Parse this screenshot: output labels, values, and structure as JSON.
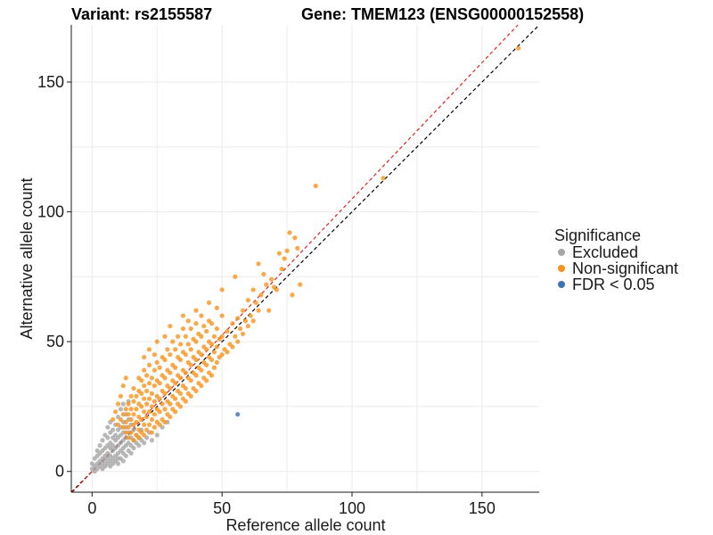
{
  "chart_data": {
    "type": "scatter",
    "title_variant": "Variant: rs2155587",
    "title_gene": "Gene: TMEM123 (ENSG00000152558)",
    "xlabel": "Reference allele count",
    "ylabel": "Alternative allele count",
    "xlim": [
      -8,
      172
    ],
    "ylim": [
      -8,
      172
    ],
    "xticks": [
      0,
      50,
      100,
      150
    ],
    "yticks": [
      0,
      50,
      100,
      150
    ],
    "grid": true,
    "legend_position": "right",
    "legend": {
      "title": "Significance",
      "entries": [
        {
          "label": "Excluded",
          "color": "#a6a6a6"
        },
        {
          "label": "Non-significant",
          "color": "#f7941d"
        },
        {
          "label": "FDR < 0.05",
          "color": "#3d72b4"
        }
      ]
    },
    "reference_lines": [
      {
        "name": "identity",
        "color": "#000000",
        "slope": 1,
        "intercept": 0
      },
      {
        "name": "fit",
        "color": "#e8231d",
        "slope": 1.05,
        "intercept": 0
      }
    ],
    "series": [
      {
        "name": "Excluded",
        "color": "#a6a6a6",
        "points": [
          [
            0,
            1
          ],
          [
            0,
            3
          ],
          [
            1,
            0
          ],
          [
            1,
            2
          ],
          [
            1,
            5
          ],
          [
            2,
            1
          ],
          [
            2,
            3
          ],
          [
            2,
            6
          ],
          [
            2,
            8
          ],
          [
            3,
            2
          ],
          [
            3,
            4
          ],
          [
            3,
            7
          ],
          [
            3,
            10
          ],
          [
            4,
            1
          ],
          [
            4,
            3
          ],
          [
            4,
            5
          ],
          [
            4,
            8
          ],
          [
            4,
            12
          ],
          [
            5,
            2
          ],
          [
            5,
            4
          ],
          [
            5,
            6
          ],
          [
            5,
            9
          ],
          [
            5,
            14
          ],
          [
            6,
            3
          ],
          [
            6,
            5
          ],
          [
            6,
            7
          ],
          [
            6,
            10
          ],
          [
            6,
            13
          ],
          [
            6,
            17
          ],
          [
            7,
            2
          ],
          [
            7,
            4
          ],
          [
            7,
            6
          ],
          [
            7,
            9
          ],
          [
            7,
            11
          ],
          [
            7,
            15
          ],
          [
            7,
            19
          ],
          [
            8,
            3
          ],
          [
            8,
            5
          ],
          [
            8,
            8
          ],
          [
            8,
            10
          ],
          [
            8,
            13
          ],
          [
            8,
            16
          ],
          [
            9,
            4
          ],
          [
            9,
            6
          ],
          [
            9,
            9
          ],
          [
            9,
            12
          ],
          [
            9,
            14
          ],
          [
            9,
            18
          ],
          [
            10,
            3
          ],
          [
            10,
            5
          ],
          [
            10,
            7
          ],
          [
            10,
            10
          ],
          [
            10,
            13
          ],
          [
            10,
            16
          ],
          [
            10,
            21
          ],
          [
            11,
            5
          ],
          [
            11,
            8
          ],
          [
            11,
            11
          ],
          [
            11,
            14
          ],
          [
            11,
            17
          ],
          [
            11,
            24
          ],
          [
            12,
            4
          ],
          [
            12,
            7
          ],
          [
            12,
            9
          ],
          [
            12,
            12
          ],
          [
            12,
            15
          ],
          [
            12,
            19
          ],
          [
            12,
            26
          ],
          [
            13,
            6
          ],
          [
            13,
            10
          ],
          [
            13,
            13
          ],
          [
            13,
            17
          ],
          [
            13,
            22
          ],
          [
            14,
            8
          ],
          [
            14,
            11
          ],
          [
            14,
            15
          ],
          [
            14,
            20
          ],
          [
            14,
            27
          ],
          [
            15,
            7
          ],
          [
            15,
            10
          ],
          [
            15,
            13
          ],
          [
            15,
            18
          ],
          [
            16,
            9
          ],
          [
            16,
            12
          ],
          [
            16,
            16
          ],
          [
            17,
            11
          ],
          [
            17,
            14
          ],
          [
            18,
            10
          ],
          [
            18,
            13
          ],
          [
            19,
            12
          ],
          [
            19,
            16
          ],
          [
            20,
            11
          ],
          [
            21,
            13
          ],
          [
            22,
            15
          ],
          [
            23,
            12
          ],
          [
            25,
            14
          ],
          [
            27,
            17
          ],
          [
            29,
            19
          ]
        ]
      },
      {
        "name": "Non-significant",
        "color": "#f7941d",
        "points": [
          [
            10,
            18
          ],
          [
            11,
            20
          ],
          [
            12,
            17
          ],
          [
            12,
            22
          ],
          [
            13,
            15
          ],
          [
            13,
            19
          ],
          [
            13,
            24
          ],
          [
            14,
            13
          ],
          [
            14,
            17
          ],
          [
            14,
            22
          ],
          [
            14,
            26
          ],
          [
            15,
            15
          ],
          [
            15,
            20
          ],
          [
            15,
            24
          ],
          [
            15,
            29
          ],
          [
            16,
            12
          ],
          [
            16,
            18
          ],
          [
            16,
            22
          ],
          [
            16,
            27
          ],
          [
            16,
            32
          ],
          [
            17,
            14
          ],
          [
            17,
            19
          ],
          [
            17,
            24
          ],
          [
            17,
            29
          ],
          [
            18,
            13
          ],
          [
            18,
            16
          ],
          [
            18,
            21
          ],
          [
            18,
            26
          ],
          [
            18,
            31
          ],
          [
            18,
            36
          ],
          [
            19,
            15
          ],
          [
            19,
            20
          ],
          [
            19,
            25
          ],
          [
            19,
            30
          ],
          [
            19,
            35
          ],
          [
            20,
            14
          ],
          [
            20,
            18
          ],
          [
            20,
            23
          ],
          [
            20,
            28
          ],
          [
            20,
            33
          ],
          [
            20,
            39
          ],
          [
            21,
            16
          ],
          [
            21,
            21
          ],
          [
            21,
            26
          ],
          [
            21,
            31
          ],
          [
            21,
            37
          ],
          [
            22,
            18
          ],
          [
            22,
            23
          ],
          [
            22,
            28
          ],
          [
            22,
            34
          ],
          [
            22,
            41
          ],
          [
            23,
            15
          ],
          [
            23,
            20
          ],
          [
            23,
            25
          ],
          [
            23,
            30
          ],
          [
            23,
            36
          ],
          [
            24,
            17
          ],
          [
            24,
            22
          ],
          [
            24,
            27
          ],
          [
            24,
            33
          ],
          [
            24,
            39
          ],
          [
            24,
            45
          ],
          [
            25,
            19
          ],
          [
            25,
            24
          ],
          [
            25,
            29
          ],
          [
            25,
            35
          ],
          [
            25,
            42
          ],
          [
            26,
            18
          ],
          [
            26,
            23
          ],
          [
            26,
            28
          ],
          [
            26,
            34
          ],
          [
            26,
            40
          ],
          [
            27,
            20
          ],
          [
            27,
            26
          ],
          [
            27,
            31
          ],
          [
            27,
            37
          ],
          [
            27,
            44
          ],
          [
            28,
            19
          ],
          [
            28,
            24
          ],
          [
            28,
            30
          ],
          [
            28,
            36
          ],
          [
            28,
            43
          ],
          [
            29,
            22
          ],
          [
            29,
            27
          ],
          [
            29,
            33
          ],
          [
            29,
            39
          ],
          [
            29,
            47
          ],
          [
            30,
            21
          ],
          [
            30,
            26
          ],
          [
            30,
            32
          ],
          [
            30,
            38
          ],
          [
            30,
            45
          ],
          [
            31,
            24
          ],
          [
            31,
            29
          ],
          [
            31,
            35
          ],
          [
            31,
            41
          ],
          [
            31,
            50
          ],
          [
            32,
            23
          ],
          [
            32,
            28
          ],
          [
            32,
            34
          ],
          [
            32,
            40
          ],
          [
            32,
            47
          ],
          [
            33,
            26
          ],
          [
            33,
            31
          ],
          [
            33,
            37
          ],
          [
            33,
            44
          ],
          [
            33,
            52
          ],
          [
            34,
            25
          ],
          [
            34,
            30
          ],
          [
            34,
            36
          ],
          [
            34,
            43
          ],
          [
            34,
            49
          ],
          [
            35,
            28
          ],
          [
            35,
            33
          ],
          [
            35,
            39
          ],
          [
            35,
            46
          ],
          [
            35,
            55
          ],
          [
            36,
            27
          ],
          [
            36,
            32
          ],
          [
            36,
            38
          ],
          [
            36,
            45
          ],
          [
            36,
            52
          ],
          [
            37,
            30
          ],
          [
            37,
            36
          ],
          [
            37,
            42
          ],
          [
            37,
            49
          ],
          [
            37,
            58
          ],
          [
            38,
            29
          ],
          [
            38,
            35
          ],
          [
            38,
            41
          ],
          [
            38,
            47
          ],
          [
            38,
            55
          ],
          [
            39,
            32
          ],
          [
            39,
            38
          ],
          [
            39,
            44
          ],
          [
            39,
            51
          ],
          [
            40,
            31
          ],
          [
            40,
            37
          ],
          [
            40,
            43
          ],
          [
            40,
            50
          ],
          [
            40,
            57
          ],
          [
            41,
            34
          ],
          [
            41,
            40
          ],
          [
            41,
            46
          ],
          [
            41,
            53
          ],
          [
            42,
            33
          ],
          [
            42,
            39
          ],
          [
            42,
            45
          ],
          [
            42,
            52
          ],
          [
            42,
            60
          ],
          [
            43,
            36
          ],
          [
            43,
            42
          ],
          [
            43,
            48
          ],
          [
            43,
            56
          ],
          [
            44,
            35
          ],
          [
            44,
            41
          ],
          [
            44,
            47
          ],
          [
            44,
            54
          ],
          [
            45,
            38
          ],
          [
            45,
            44
          ],
          [
            45,
            50
          ],
          [
            45,
            58
          ],
          [
            46,
            37
          ],
          [
            46,
            43
          ],
          [
            46,
            49
          ],
          [
            46,
            57
          ],
          [
            47,
            40
          ],
          [
            47,
            46
          ],
          [
            47,
            52
          ],
          [
            48,
            42
          ],
          [
            48,
            48
          ],
          [
            48,
            55
          ],
          [
            48,
            63
          ],
          [
            49,
            44
          ],
          [
            49,
            51
          ],
          [
            50,
            45
          ],
          [
            50,
            52
          ],
          [
            50,
            60
          ],
          [
            51,
            47
          ],
          [
            52,
            46
          ],
          [
            52,
            54
          ],
          [
            53,
            49
          ],
          [
            54,
            48
          ],
          [
            54,
            57
          ],
          [
            55,
            52
          ],
          [
            56,
            50
          ],
          [
            56,
            59
          ],
          [
            57,
            55
          ],
          [
            58,
            53
          ],
          [
            58,
            62
          ],
          [
            59,
            58
          ],
          [
            60,
            56
          ],
          [
            60,
            66
          ],
          [
            61,
            60
          ],
          [
            62,
            58
          ],
          [
            62,
            70
          ],
          [
            63,
            65
          ],
          [
            64,
            62
          ],
          [
            64,
            80
          ],
          [
            65,
            68
          ],
          [
            66,
            76
          ],
          [
            67,
            72
          ],
          [
            68,
            62
          ],
          [
            69,
            74
          ],
          [
            70,
            71
          ],
          [
            71,
            70
          ],
          [
            72,
            84
          ],
          [
            73,
            78
          ],
          [
            74,
            82
          ],
          [
            75,
            85
          ],
          [
            76,
            92
          ],
          [
            77,
            68
          ],
          [
            78,
            90
          ],
          [
            79,
            86
          ],
          [
            80,
            72
          ],
          [
            86,
            110
          ],
          [
            112,
            113
          ],
          [
            164,
            163
          ],
          [
            8,
            20
          ],
          [
            9,
            23
          ],
          [
            10,
            26
          ],
          [
            11,
            29
          ],
          [
            12,
            33
          ],
          [
            13,
            36
          ],
          [
            20,
            44
          ],
          [
            22,
            47
          ],
          [
            25,
            50
          ],
          [
            28,
            52
          ],
          [
            30,
            56
          ],
          [
            35,
            60
          ],
          [
            40,
            62
          ],
          [
            45,
            65
          ],
          [
            50,
            70
          ],
          [
            55,
            75
          ]
        ]
      },
      {
        "name": "FDR < 0.05",
        "color": "#3d72b4",
        "points": [
          [
            56,
            22
          ]
        ]
      }
    ]
  }
}
